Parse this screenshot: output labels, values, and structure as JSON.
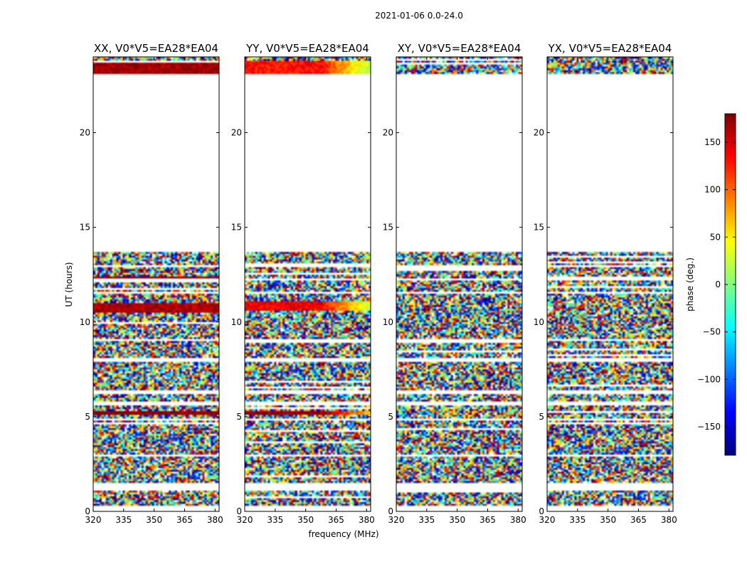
{
  "chart_data": {
    "type": "heatmap",
    "suptitle": "2021-01-06 0.0-24.0",
    "xlabel": "frequency (MHz)",
    "ylabel": "UT (hours)",
    "xlim": [
      320,
      382
    ],
    "ylim": [
      0,
      24
    ],
    "xticks": [
      320,
      335,
      350,
      365,
      380
    ],
    "yticks": [
      0,
      5,
      10,
      15,
      20
    ],
    "panels": [
      {
        "title": "XX, V0*V5=EA28*EA04",
        "pol": "XX"
      },
      {
        "title": "YY, V0*V5=EA28*EA04",
        "pol": "YY"
      },
      {
        "title": "XY, V0*V5=EA28*EA04",
        "pol": "XY"
      },
      {
        "title": "YX, V0*V5=EA28*EA04",
        "pol": "YX"
      }
    ],
    "colorbar": {
      "label": "phase (deg.)",
      "range": [
        -180,
        180
      ],
      "ticks": [
        150,
        100,
        50,
        0,
        -50,
        -100,
        -150
      ],
      "tick_labels": [
        "150",
        "100",
        "50",
        "0",
        "−50",
        "−100",
        "−150"
      ],
      "colormap": [
        "#00007f",
        "#0000ff",
        "#007fff",
        "#00ffff",
        "#7fff7f",
        "#ffff00",
        "#ff7f00",
        "#ff0000",
        "#7f0000"
      ]
    },
    "data_coverage_ut": [
      [
        0.3,
        1.1
      ],
      [
        1.5,
        1.65
      ],
      [
        1.75,
        2.9
      ],
      [
        3.0,
        4.8
      ],
      [
        4.9,
        5.6
      ],
      [
        5.85,
        6.2
      ],
      [
        6.35,
        7.9
      ],
      [
        8.1,
        9.0
      ],
      [
        9.1,
        11.5
      ],
      [
        11.6,
        12.2
      ],
      [
        12.3,
        12.9
      ],
      [
        13.0,
        13.7
      ],
      [
        23.1,
        24.0
      ]
    ],
    "coherent_features": [
      {
        "pol": "XX",
        "ut": [
          10.55,
          11.05
        ],
        "phase": 165
      },
      {
        "pol": "XX",
        "ut": [
          12.2,
          12.45
        ],
        "phase": 175
      },
      {
        "pol": "XX",
        "ut": [
          5.1,
          5.3
        ],
        "phase": 175
      },
      {
        "pol": "XX",
        "ut": [
          23.1,
          23.8
        ],
        "phase": 170
      },
      {
        "pol": "YY",
        "ut": [
          10.6,
          11.1
        ],
        "phase": 140
      },
      {
        "pol": "YY",
        "ut": [
          5.1,
          5.3
        ],
        "phase": 175
      },
      {
        "pol": "YY",
        "ut": [
          23.1,
          23.8
        ],
        "phase": 130
      }
    ]
  }
}
